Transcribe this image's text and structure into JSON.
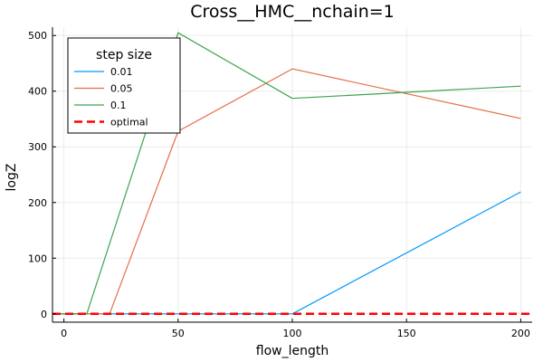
{
  "chart_data": {
    "type": "line",
    "title": "Cross__HMC__nchain=1",
    "xlabel": "flow_length",
    "ylabel": "logZ",
    "xlim": [
      -5,
      205
    ],
    "ylim": [
      -15,
      515
    ],
    "xticks": [
      0,
      50,
      100,
      150,
      200
    ],
    "yticks": [
      0,
      100,
      200,
      300,
      400,
      500
    ],
    "grid": true,
    "legend": {
      "title": "step size",
      "position": "top-left"
    },
    "series": [
      {
        "name": "0.01",
        "color": "#009AFA",
        "dash": "solid",
        "x": [
          -5,
          100,
          200
        ],
        "y": [
          0,
          0,
          219
        ]
      },
      {
        "name": "0.05",
        "color": "#E36F47",
        "dash": "solid",
        "x": [
          -5,
          20,
          50,
          100,
          200
        ],
        "y": [
          0,
          0,
          328,
          440,
          351
        ]
      },
      {
        "name": "0.1",
        "color": "#3EA44E",
        "dash": "solid",
        "x": [
          -5,
          10,
          50,
          100,
          200
        ],
        "y": [
          0,
          0,
          505,
          387,
          409
        ]
      },
      {
        "name": "optimal",
        "color": "#FF0000",
        "dash": "dashed",
        "x": [
          -5,
          205
        ],
        "y": [
          0,
          0
        ]
      }
    ]
  }
}
